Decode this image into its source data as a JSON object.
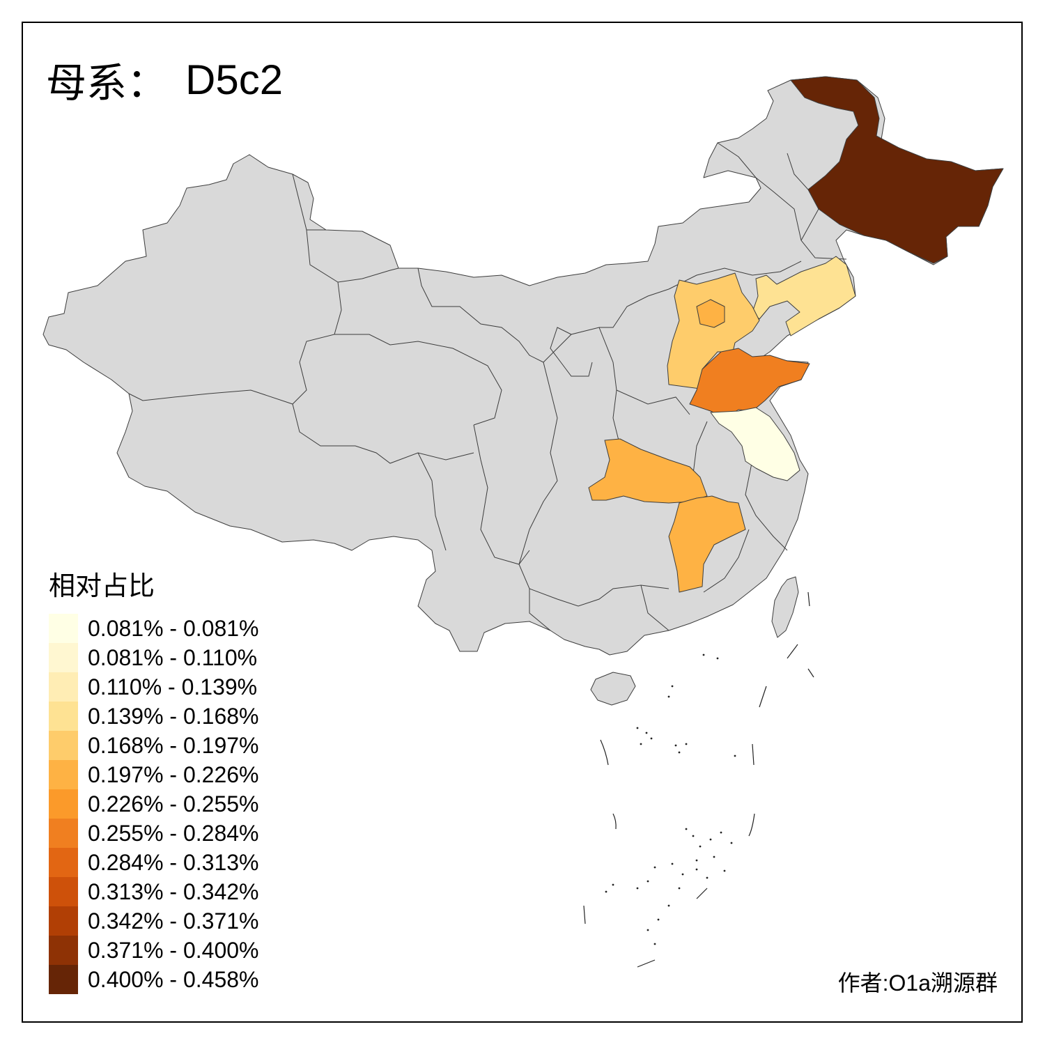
{
  "title": {
    "prefix": "母系：",
    "value": "D5c2"
  },
  "legend": {
    "title": "相对占比",
    "items": [
      {
        "label": "0.081% - 0.081%",
        "color": "#FFFFE5"
      },
      {
        "label": "0.081% - 0.110%",
        "color": "#FFF7D1"
      },
      {
        "label": "0.110% - 0.139%",
        "color": "#FFEDB4"
      },
      {
        "label": "0.139% - 0.168%",
        "color": "#FEE293"
      },
      {
        "label": "0.168% - 0.197%",
        "color": "#FECC6B"
      },
      {
        "label": "0.197% - 0.226%",
        "color": "#FEB244"
      },
      {
        "label": "0.226% - 0.255%",
        "color": "#FB9A2A"
      },
      {
        "label": "0.255% - 0.284%",
        "color": "#F07F20"
      },
      {
        "label": "0.284% - 0.313%",
        "color": "#E26613"
      },
      {
        "label": "0.313% - 0.342%",
        "color": "#CE510A"
      },
      {
        "label": "0.342% - 0.371%",
        "color": "#B13F05"
      },
      {
        "label": "0.371% - 0.400%",
        "color": "#8E3205"
      },
      {
        "label": "0.400% - 0.458%",
        "color": "#662506"
      }
    ]
  },
  "author": "作者:O1a溯源群",
  "colors": {
    "no_data": "#D9D9D9",
    "border": "#3C3C3C"
  },
  "regions": [
    {
      "name": "Heilongjiang",
      "band": 12
    },
    {
      "name": "Liaoning",
      "band": 3
    },
    {
      "name": "Hebei",
      "band": 4
    },
    {
      "name": "Beijing",
      "band": 5
    },
    {
      "name": "Shandong",
      "band": 7
    },
    {
      "name": "Jiangsu",
      "band": 0
    },
    {
      "name": "Hubei",
      "band": 5
    },
    {
      "name": "Jiangxi",
      "band": 5
    }
  ]
}
